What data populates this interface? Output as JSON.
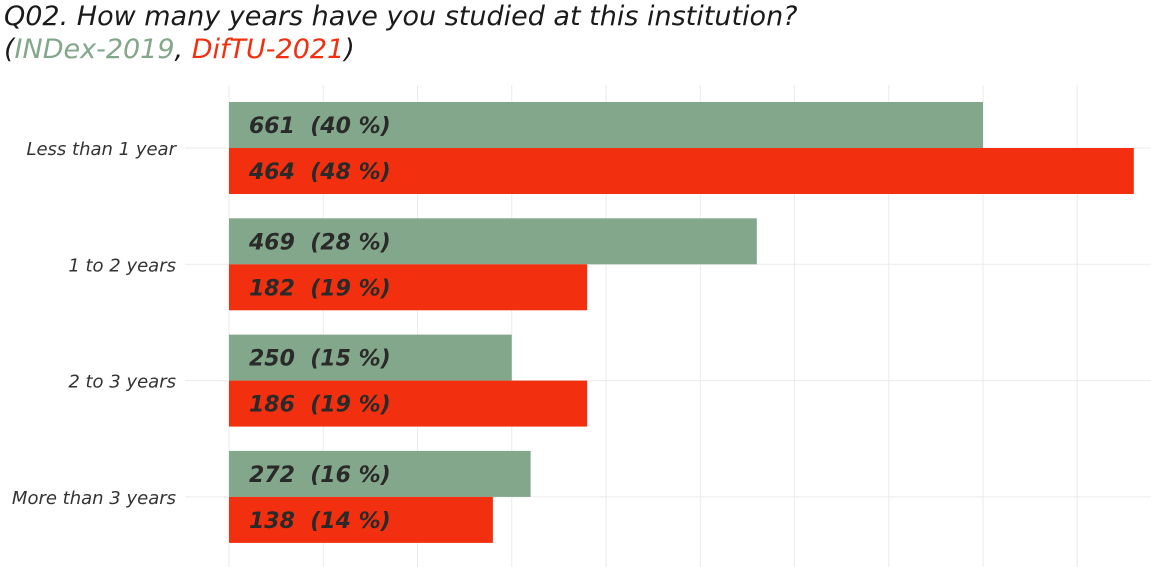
{
  "title": {
    "line1": "Q02. How many years have you studied at this institution?",
    "open_paren": "(",
    "series_a_name": "INDex-2019",
    "separator": ", ",
    "series_b_name": "DifTU-2021",
    "close_paren": ")"
  },
  "colors": {
    "series_a": "#82a78a",
    "series_b": "#f2300f",
    "grid": "#ebebeb"
  },
  "chart_data": {
    "type": "bar",
    "orientation": "horizontal",
    "categories": [
      "Less than 1 year",
      "1 to 2 years",
      "2 to 3 years",
      "More than 3 years"
    ],
    "series": [
      {
        "name": "INDex-2019",
        "values": [
          40,
          28,
          15,
          16
        ],
        "labels": [
          "661  (40 %)",
          "469  (28 %)",
          "250  (15 %)",
          "272  (16 %)"
        ]
      },
      {
        "name": "DifTU-2021",
        "values": [
          48,
          19,
          19,
          14
        ],
        "labels": [
          "464  (48 %)",
          "182  (19 %)",
          "186  (19 %)",
          "138  (14 %)"
        ]
      }
    ],
    "xlim": [
      0,
      50
    ],
    "grid": true,
    "axis_ticks_shown": false,
    "legend": "in-title"
  }
}
